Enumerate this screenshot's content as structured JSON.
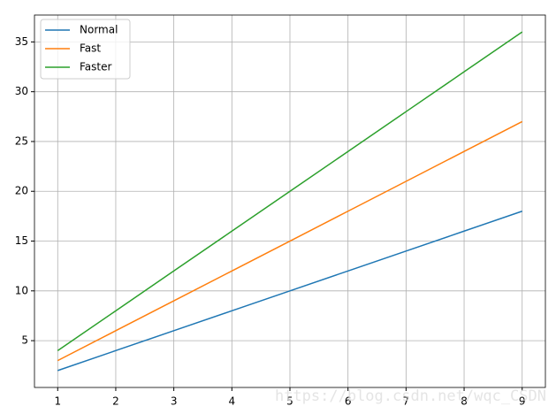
{
  "chart_data": {
    "type": "line",
    "x": [
      1,
      2,
      3,
      4,
      5,
      6,
      7,
      8,
      9
    ],
    "series": [
      {
        "name": "Normal",
        "color": "#1f77b4",
        "values": [
          2,
          4,
          6,
          8,
          10,
          12,
          14,
          16,
          18
        ]
      },
      {
        "name": "Fast",
        "color": "#ff7f0e",
        "values": [
          3,
          6,
          9,
          12,
          15,
          18,
          21,
          24,
          27
        ]
      },
      {
        "name": "Faster",
        "color": "#2ca02c",
        "values": [
          4,
          8,
          12,
          16,
          20,
          24,
          28,
          32,
          36
        ]
      }
    ],
    "xlim": [
      0.6,
      9.4
    ],
    "xticks": [
      1,
      2,
      3,
      4,
      5,
      6,
      7,
      8,
      9
    ],
    "ylim": [
      0.3,
      37.7
    ],
    "yticks": [
      5,
      10,
      15,
      20,
      25,
      30,
      35
    ],
    "grid": true,
    "legend": "upper-left",
    "watermark": "https://blog.csdn.net/wqc_CSDN"
  }
}
